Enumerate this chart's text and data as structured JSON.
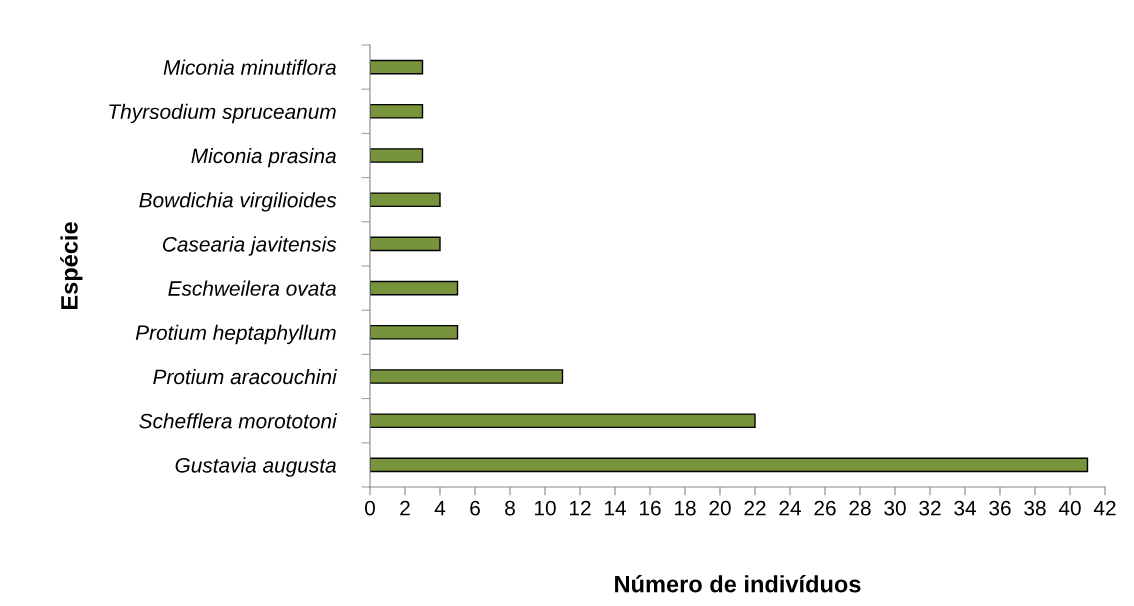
{
  "chart_data": {
    "type": "bar",
    "orientation": "horizontal",
    "xlabel": "Número de indivíduos",
    "ylabel": "Espécie",
    "categories": [
      "Miconia minutiflora",
      "Thyrsodium spruceanum",
      "Miconia prasina",
      "Bowdichia virgilioides",
      "Casearia javitensis",
      "Eschweilera ovata",
      "Protium heptaphyllum",
      "Protium aracouchini",
      "Schefflera morototoni",
      "Gustavia augusta"
    ],
    "values": [
      3,
      3,
      3,
      4,
      4,
      5,
      5,
      11,
      22,
      41
    ],
    "color": "#77933c",
    "xlim": [
      0,
      42
    ],
    "xticks": [
      0,
      2,
      4,
      6,
      8,
      10,
      12,
      14,
      16,
      18,
      20,
      22,
      24,
      26,
      28,
      30,
      32,
      34,
      36,
      38,
      40,
      42
    ],
    "grid": false
  }
}
